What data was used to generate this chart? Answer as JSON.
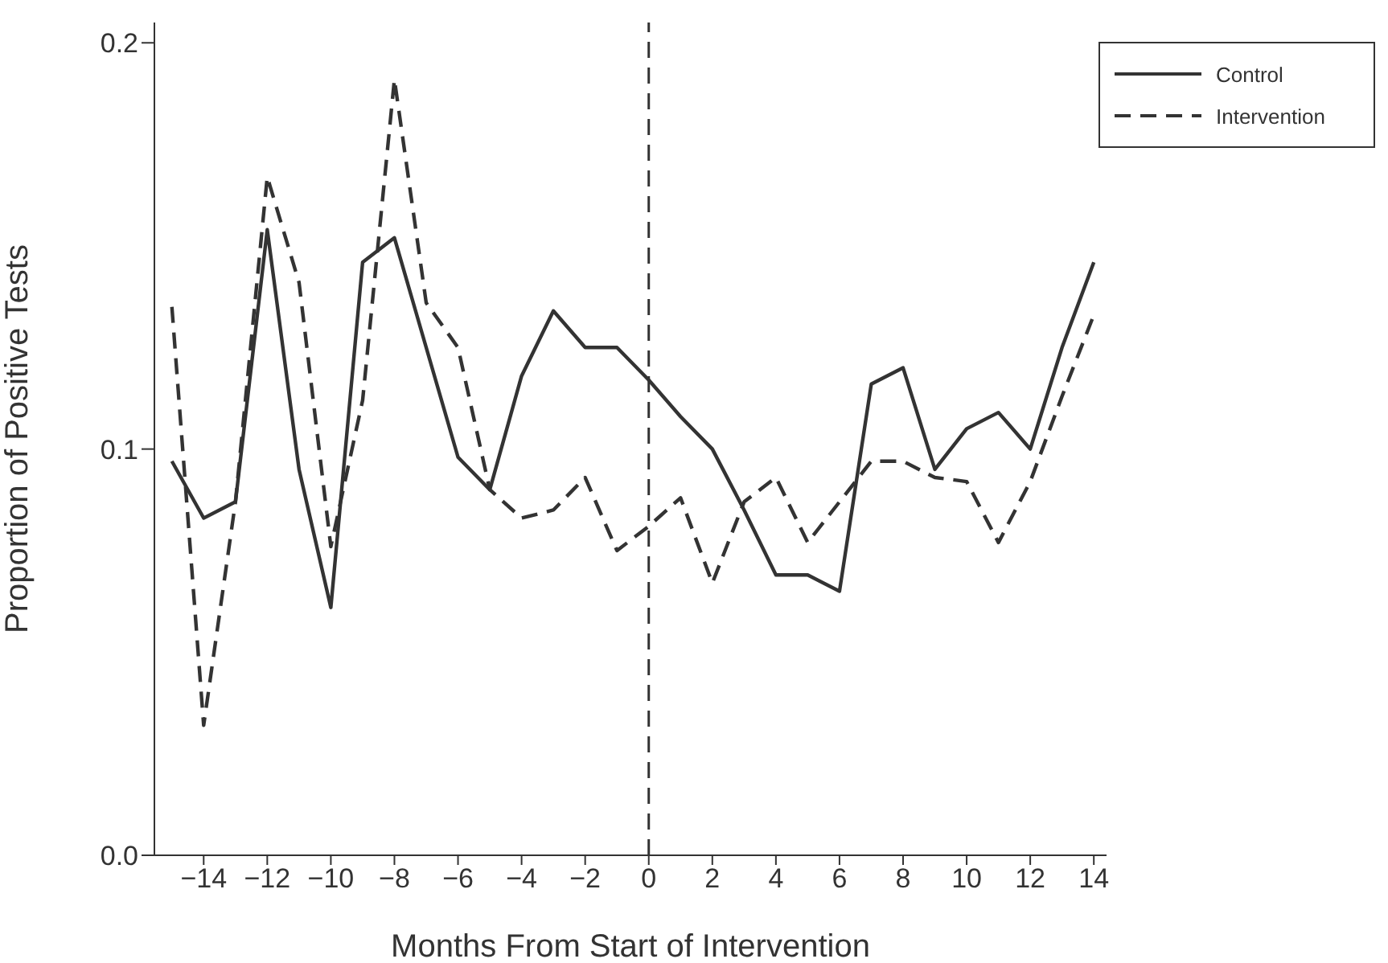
{
  "chart_data": {
    "type": "line",
    "xlabel": "Months From Start of Intervention",
    "ylabel": "Proportion of Positive Tests",
    "x": [
      -15,
      -14,
      -13,
      -12,
      -11,
      -10,
      -9,
      -8,
      -7,
      -6,
      -5,
      -4,
      -3,
      -2,
      -1,
      0,
      1,
      2,
      3,
      4,
      5,
      6,
      7,
      8,
      9,
      10,
      11,
      12,
      13,
      14
    ],
    "series": [
      {
        "name": "Control",
        "color": "#333333",
        "line_style": "solid",
        "values": [
          0.097,
          0.083,
          0.087,
          0.154,
          0.095,
          0.061,
          0.146,
          0.152,
          0.125,
          0.098,
          0.09,
          0.118,
          0.134,
          0.125,
          0.125,
          0.117,
          0.108,
          0.1,
          0.085,
          0.069,
          0.069,
          0.065,
          0.116,
          0.12,
          0.095,
          0.105,
          0.109,
          0.1,
          0.125,
          0.146
        ]
      },
      {
        "name": "Intervention",
        "color": "#333333",
        "line_style": "dashed",
        "values": [
          0.135,
          0.032,
          0.087,
          0.167,
          0.141,
          0.076,
          0.112,
          0.191,
          0.136,
          0.125,
          0.09,
          0.083,
          0.085,
          0.093,
          0.075,
          0.081,
          0.088,
          0.067,
          0.087,
          0.093,
          0.077,
          0.087,
          0.097,
          0.097,
          0.093,
          0.092,
          0.077,
          0.092,
          0.113,
          0.133
        ]
      }
    ],
    "xlim": [
      -15.55,
      14.4
    ],
    "xticks": [
      {
        "value": -14,
        "label": "−14"
      },
      {
        "value": -12,
        "label": "−12"
      },
      {
        "value": -10,
        "label": "−10"
      },
      {
        "value": -8,
        "label": "−8"
      },
      {
        "value": -6,
        "label": "−6"
      },
      {
        "value": -4,
        "label": "−4"
      },
      {
        "value": -2,
        "label": "−2"
      },
      0,
      2,
      4,
      6,
      8,
      10,
      12,
      14
    ],
    "ylim": [
      0,
      0.205
    ],
    "yticks": [
      {
        "value": 0,
        "label": "0.0"
      },
      0.1,
      0.2
    ],
    "ref_lines": [
      {
        "axis": "x",
        "value": 0,
        "color": "#333333",
        "line_style": "dashed"
      }
    ],
    "legend": "top right",
    "grid": false,
    "marker": "none"
  }
}
